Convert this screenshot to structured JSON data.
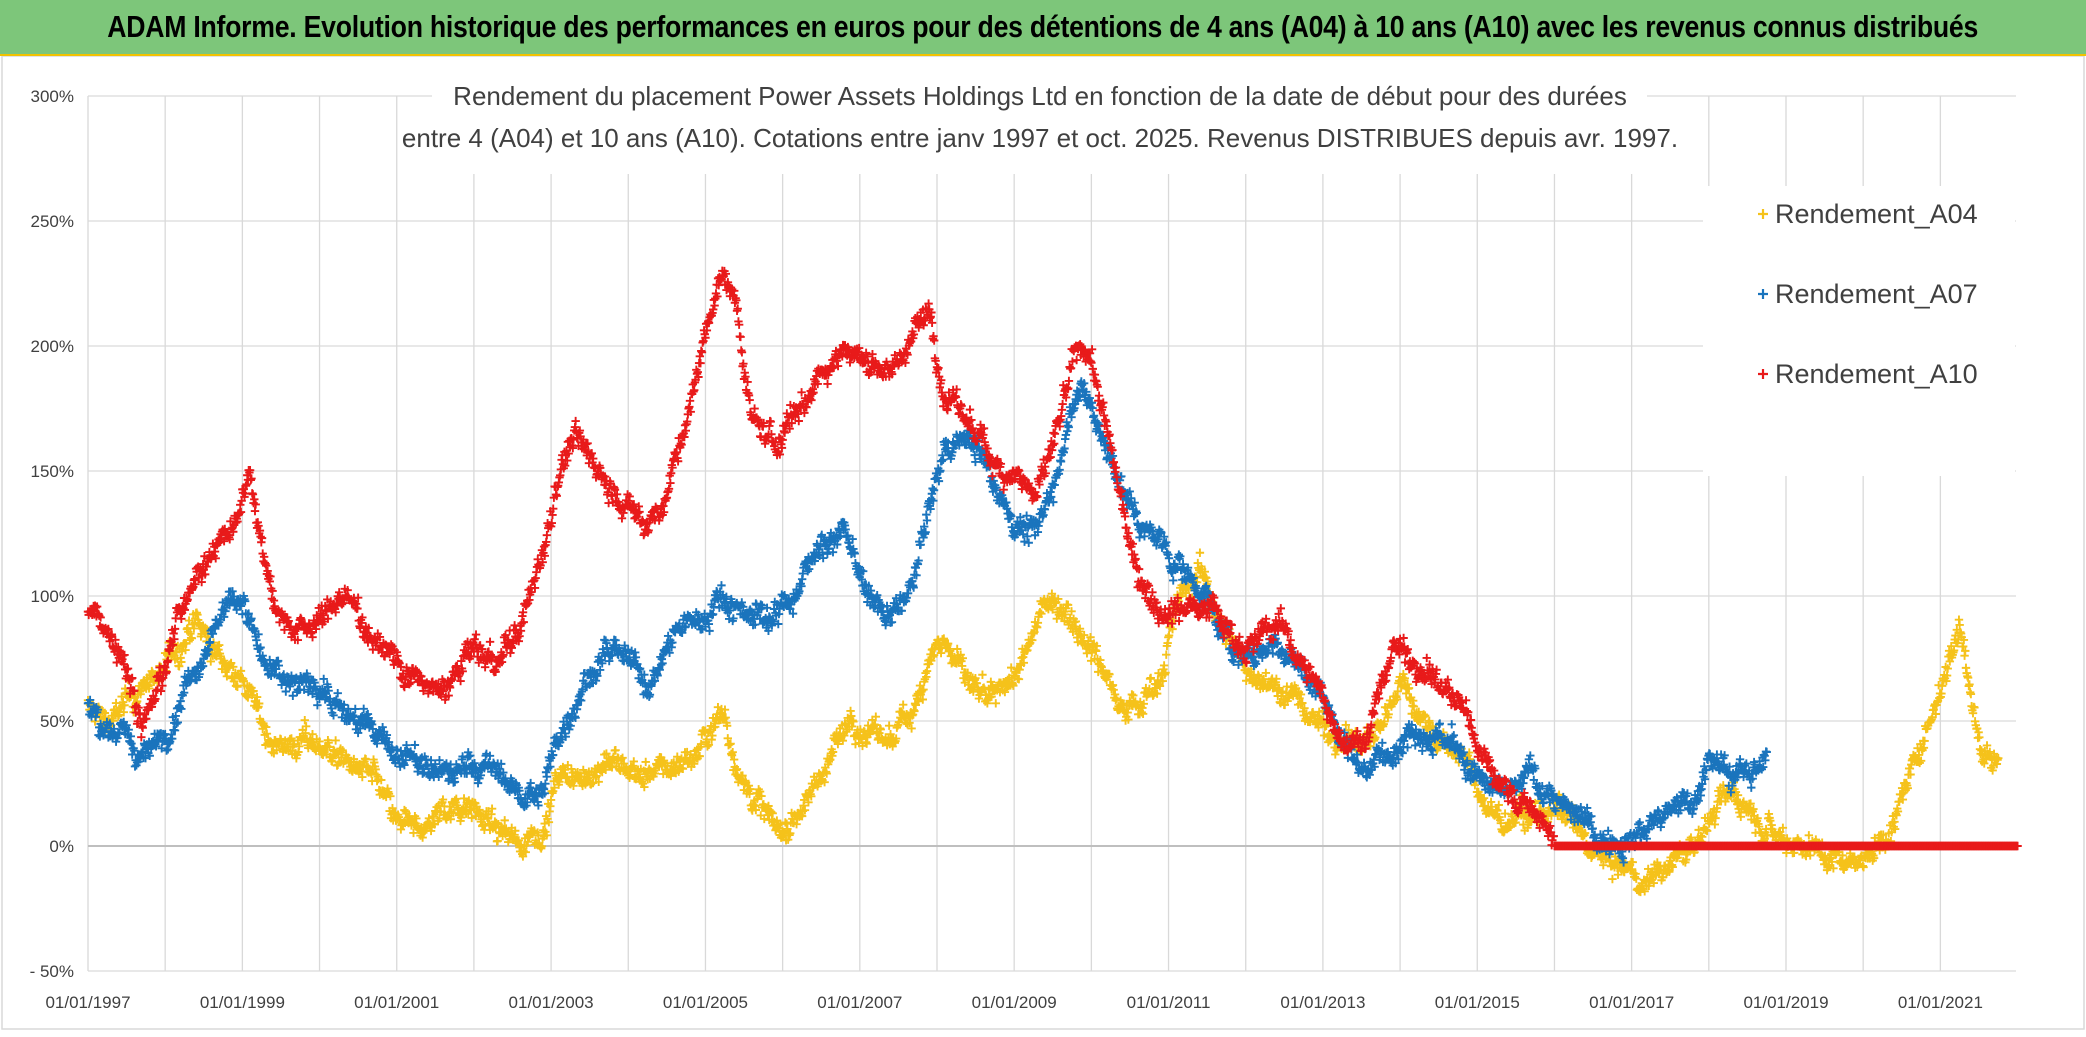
{
  "banner": {
    "text": "ADAM Informe. Evolution historique des performances en euros pour des détentions de 4 ans (A04) à 10 ans (A10) avec les revenus connus distribués"
  },
  "chart_data": {
    "type": "scatter",
    "title_line1": "Rendement du placement Power Assets Holdings Ltd en fonction de la date de début pour des durées",
    "title_line2": "entre 4 (A04) et 10 ans (A10). Cotations entre janv 1997 et oct. 2025. Revenus DISTRIBUES depuis avr. 1997.",
    "x_range": [
      1997.0,
      2022.0
    ],
    "ylim": [
      -50,
      300
    ],
    "y_ticks": [
      {
        "value": 300,
        "label": "300%"
      },
      {
        "value": 250,
        "label": "250%"
      },
      {
        "value": 200,
        "label": "200%"
      },
      {
        "value": 150,
        "label": "150%"
      },
      {
        "value": 100,
        "label": "100%"
      },
      {
        "value": 50,
        "label": "50%"
      },
      {
        "value": 0,
        "label": "0%"
      },
      {
        "value": -50,
        "label": "- 50%"
      }
    ],
    "x_ticks": [
      {
        "value": 1997,
        "label": "01/01/1997"
      },
      {
        "value": 1999,
        "label": "01/01/1999"
      },
      {
        "value": 2001,
        "label": "01/01/2001"
      },
      {
        "value": 2003,
        "label": "01/01/2003"
      },
      {
        "value": 2005,
        "label": "01/01/2005"
      },
      {
        "value": 2007,
        "label": "01/01/2007"
      },
      {
        "value": 2009,
        "label": "01/01/2009"
      },
      {
        "value": 2011,
        "label": "01/01/2011"
      },
      {
        "value": 2013,
        "label": "01/01/2013"
      },
      {
        "value": 2015,
        "label": "01/01/2015"
      },
      {
        "value": 2017,
        "label": "01/01/2017"
      },
      {
        "value": 2019,
        "label": "01/01/2019"
      },
      {
        "value": 2021,
        "label": "01/01/2021"
      }
    ],
    "x_grid_values": [
      1997,
      1998,
      1999,
      2000,
      2001,
      2002,
      2003,
      2004,
      2005,
      2006,
      2007,
      2008,
      2009,
      2010,
      2011,
      2012,
      2013,
      2014,
      2015,
      2016,
      2017,
      2018,
      2019,
      2020,
      2021
    ],
    "legend_position": "top-right",
    "series": [
      {
        "name": "Rendement_A04",
        "color": "#f5c21b",
        "x_start": 1997.0,
        "x_end": 2021.75,
        "points": [
          [
            1997.0,
            55
          ],
          [
            1997.3,
            50
          ],
          [
            1997.6,
            60
          ],
          [
            1998.0,
            72
          ],
          [
            1998.4,
            88
          ],
          [
            1998.7,
            75
          ],
          [
            1999.0,
            68
          ],
          [
            1999.3,
            45
          ],
          [
            1999.6,
            40
          ],
          [
            2000.0,
            42
          ],
          [
            2000.4,
            32
          ],
          [
            2000.7,
            28
          ],
          [
            2001.0,
            8
          ],
          [
            2001.3,
            5
          ],
          [
            2001.6,
            15
          ],
          [
            2002.0,
            18
          ],
          [
            2002.3,
            5
          ],
          [
            2002.6,
            2
          ],
          [
            2002.9,
            8
          ],
          [
            2003.1,
            28
          ],
          [
            2003.4,
            25
          ],
          [
            2003.7,
            35
          ],
          [
            2004.0,
            30
          ],
          [
            2004.3,
            28
          ],
          [
            2004.6,
            32
          ],
          [
            2004.9,
            38
          ],
          [
            2005.2,
            55
          ],
          [
            2005.5,
            25
          ],
          [
            2005.8,
            12
          ],
          [
            2006.0,
            5
          ],
          [
            2006.3,
            18
          ],
          [
            2006.6,
            35
          ],
          [
            2006.9,
            52
          ],
          [
            2007.1,
            45
          ],
          [
            2007.4,
            42
          ],
          [
            2007.7,
            55
          ],
          [
            2007.9,
            78
          ],
          [
            2008.1,
            82
          ],
          [
            2008.4,
            65
          ],
          [
            2008.7,
            55
          ],
          [
            2009.0,
            68
          ],
          [
            2009.2,
            78
          ],
          [
            2009.4,
            100
          ],
          [
            2009.7,
            95
          ],
          [
            2010.0,
            80
          ],
          [
            2010.3,
            62
          ],
          [
            2010.6,
            55
          ],
          [
            2010.9,
            70
          ],
          [
            2011.1,
            95
          ],
          [
            2011.4,
            110
          ],
          [
            2011.7,
            88
          ],
          [
            2012.0,
            72
          ],
          [
            2012.3,
            65
          ],
          [
            2012.6,
            60
          ],
          [
            2012.9,
            50
          ],
          [
            2013.2,
            45
          ],
          [
            2013.5,
            40
          ],
          [
            2013.8,
            48
          ],
          [
            2014.0,
            68
          ],
          [
            2014.3,
            50
          ],
          [
            2014.6,
            40
          ],
          [
            2014.9,
            32
          ],
          [
            2015.1,
            15
          ],
          [
            2015.4,
            8
          ],
          [
            2015.7,
            12
          ],
          [
            2016.0,
            15
          ],
          [
            2016.3,
            5
          ],
          [
            2016.6,
            -5
          ],
          [
            2016.9,
            -10
          ],
          [
            2017.1,
            -15
          ],
          [
            2017.4,
            -8
          ],
          [
            2017.7,
            -3
          ],
          [
            2018.0,
            10
          ],
          [
            2018.3,
            22
          ],
          [
            2018.6,
            15
          ],
          [
            2018.9,
            5
          ],
          [
            2019.2,
            2
          ],
          [
            2019.5,
            -3
          ],
          [
            2019.8,
            -5
          ],
          [
            2020.1,
            -2
          ],
          [
            2020.4,
            10
          ],
          [
            2020.7,
            35
          ],
          [
            2020.9,
            55
          ],
          [
            2021.1,
            75
          ],
          [
            2021.25,
            88
          ],
          [
            2021.4,
            62
          ],
          [
            2021.55,
            38
          ],
          [
            2021.75,
            35
          ]
        ]
      },
      {
        "name": "Rendement_A07",
        "color": "#1a74bd",
        "x_start": 1997.0,
        "x_end": 2018.75,
        "points": [
          [
            1997.0,
            55
          ],
          [
            1997.4,
            45
          ],
          [
            1997.7,
            35
          ],
          [
            1998.0,
            45
          ],
          [
            1998.3,
            68
          ],
          [
            1998.7,
            92
          ],
          [
            1999.0,
            100
          ],
          [
            1999.3,
            70
          ],
          [
            1999.6,
            65
          ],
          [
            2000.0,
            65
          ],
          [
            2000.3,
            55
          ],
          [
            2000.7,
            45
          ],
          [
            2001.0,
            38
          ],
          [
            2001.3,
            32
          ],
          [
            2001.6,
            28
          ],
          [
            2002.0,
            32
          ],
          [
            2002.3,
            30
          ],
          [
            2002.6,
            20
          ],
          [
            2002.9,
            22
          ],
          [
            2003.1,
            45
          ],
          [
            2003.4,
            65
          ],
          [
            2003.7,
            78
          ],
          [
            2004.0,
            72
          ],
          [
            2004.3,
            65
          ],
          [
            2004.6,
            85
          ],
          [
            2004.9,
            90
          ],
          [
            2005.2,
            100
          ],
          [
            2005.5,
            95
          ],
          [
            2005.8,
            92
          ],
          [
            2006.0,
            95
          ],
          [
            2006.3,
            110
          ],
          [
            2006.5,
            122
          ],
          [
            2006.8,
            125
          ],
          [
            2007.1,
            100
          ],
          [
            2007.4,
            90
          ],
          [
            2007.7,
            105
          ],
          [
            2007.9,
            135
          ],
          [
            2008.1,
            158
          ],
          [
            2008.4,
            165
          ],
          [
            2008.7,
            150
          ],
          [
            2009.0,
            130
          ],
          [
            2009.3,
            125
          ],
          [
            2009.6,
            155
          ],
          [
            2009.8,
            185
          ],
          [
            2010.0,
            175
          ],
          [
            2010.3,
            150
          ],
          [
            2010.6,
            130
          ],
          [
            2010.9,
            120
          ],
          [
            2011.2,
            110
          ],
          [
            2011.5,
            100
          ],
          [
            2011.8,
            80
          ],
          [
            2012.1,
            75
          ],
          [
            2012.4,
            82
          ],
          [
            2012.7,
            70
          ],
          [
            2013.0,
            60
          ],
          [
            2013.3,
            40
          ],
          [
            2013.6,
            30
          ],
          [
            2013.9,
            42
          ],
          [
            2014.2,
            50
          ],
          [
            2014.5,
            45
          ],
          [
            2014.8,
            35
          ],
          [
            2015.1,
            22
          ],
          [
            2015.4,
            20
          ],
          [
            2015.7,
            28
          ],
          [
            2016.0,
            20
          ],
          [
            2016.3,
            10
          ],
          [
            2016.6,
            3
          ],
          [
            2016.9,
            5
          ],
          [
            2017.2,
            8
          ],
          [
            2017.5,
            12
          ],
          [
            2017.8,
            20
          ],
          [
            2018.0,
            35
          ],
          [
            2018.3,
            28
          ],
          [
            2018.5,
            30
          ],
          [
            2018.75,
            35
          ]
        ]
      },
      {
        "name": "Rendement_A10",
        "color": "#e81a1a",
        "x_start": 1997.0,
        "x_end": 2022.0,
        "points": [
          [
            1997.0,
            95
          ],
          [
            1997.4,
            82
          ],
          [
            1997.7,
            50
          ],
          [
            1998.0,
            72
          ],
          [
            1998.3,
            105
          ],
          [
            1998.6,
            118
          ],
          [
            1998.9,
            130
          ],
          [
            1999.1,
            150
          ],
          [
            1999.4,
            100
          ],
          [
            1999.7,
            85
          ],
          [
            2000.0,
            90
          ],
          [
            2000.3,
            100
          ],
          [
            2000.7,
            85
          ],
          [
            2001.0,
            75
          ],
          [
            2001.3,
            65
          ],
          [
            2001.6,
            60
          ],
          [
            2002.0,
            80
          ],
          [
            2002.3,
            72
          ],
          [
            2002.6,
            85
          ],
          [
            2002.9,
            120
          ],
          [
            2003.1,
            150
          ],
          [
            2003.3,
            165
          ],
          [
            2003.6,
            150
          ],
          [
            2003.9,
            140
          ],
          [
            2004.2,
            128
          ],
          [
            2004.5,
            140
          ],
          [
            2004.8,
            175
          ],
          [
            2005.0,
            205
          ],
          [
            2005.2,
            230
          ],
          [
            2005.4,
            215
          ],
          [
            2005.6,
            170
          ],
          [
            2005.9,
            160
          ],
          [
            2006.2,
            175
          ],
          [
            2006.5,
            190
          ],
          [
            2006.8,
            200
          ],
          [
            2007.1,
            195
          ],
          [
            2007.4,
            190
          ],
          [
            2007.7,
            205
          ],
          [
            2007.9,
            215
          ],
          [
            2008.1,
            180
          ],
          [
            2008.4,
            170
          ],
          [
            2008.7,
            155
          ],
          [
            2009.0,
            150
          ],
          [
            2009.3,
            140
          ],
          [
            2009.6,
            170
          ],
          [
            2009.8,
            195
          ],
          [
            2010.0,
            195
          ],
          [
            2010.3,
            150
          ],
          [
            2010.6,
            110
          ],
          [
            2010.9,
            95
          ],
          [
            2011.2,
            95
          ],
          [
            2011.5,
            100
          ],
          [
            2011.8,
            85
          ],
          [
            2012.1,
            80
          ],
          [
            2012.4,
            90
          ],
          [
            2012.7,
            75
          ],
          [
            2013.0,
            60
          ],
          [
            2013.3,
            40
          ],
          [
            2013.6,
            45
          ],
          [
            2013.9,
            80
          ],
          [
            2014.2,
            75
          ],
          [
            2014.5,
            65
          ],
          [
            2014.8,
            55
          ],
          [
            2015.1,
            35
          ],
          [
            2015.4,
            22
          ],
          [
            2015.7,
            15
          ],
          [
            2016.0,
            0
          ],
          [
            2022.0,
            0
          ]
        ]
      }
    ]
  }
}
